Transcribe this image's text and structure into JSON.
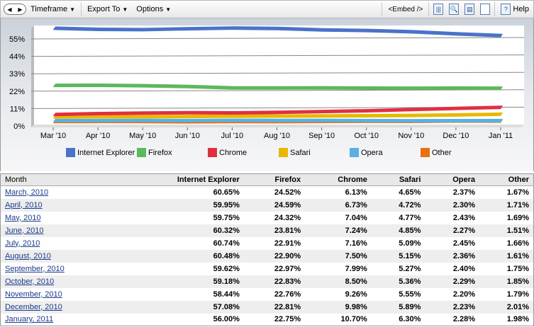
{
  "toolbar": {
    "timeframe": "Timeframe",
    "export": "Export To",
    "options": "Options",
    "embed": "<Embed />",
    "help": "Help",
    "icons": [
      "columns-icon",
      "print-preview-icon",
      "print-icon",
      "page-icon",
      "help-icon"
    ]
  },
  "colors": {
    "Internet Explorer": "#4a72c8",
    "Firefox": "#5cb85c",
    "Chrome": "#e03040",
    "Safari": "#e8b800",
    "Opera": "#5ab0e0",
    "Other": "#e87010"
  },
  "chart_data": {
    "type": "line",
    "categories": [
      "Mar '10",
      "Apr '10",
      "May '10",
      "Jun '10",
      "Jul '10",
      "Aug '10",
      "Sep '10",
      "Oct '10",
      "Nov '10",
      "Dec '10",
      "Jan '11"
    ],
    "y_ticks": [
      "0%",
      "11%",
      "22%",
      "33%",
      "44%",
      "55%"
    ],
    "ylim": [
      0,
      62.6
    ],
    "grid": true,
    "legend": "bottom",
    "series": [
      {
        "name": "Internet Explorer",
        "values": [
          60.65,
          59.95,
          59.75,
          60.32,
          60.74,
          60.48,
          59.62,
          59.18,
          58.44,
          57.08,
          56.0
        ]
      },
      {
        "name": "Firefox",
        "values": [
          24.52,
          24.59,
          24.32,
          23.81,
          22.91,
          22.9,
          22.97,
          22.83,
          22.76,
          22.81,
          22.75
        ]
      },
      {
        "name": "Chrome",
        "values": [
          6.13,
          6.73,
          7.04,
          7.24,
          7.16,
          7.5,
          7.99,
          8.5,
          9.26,
          9.98,
          10.7
        ]
      },
      {
        "name": "Safari",
        "values": [
          4.65,
          4.72,
          4.77,
          4.85,
          5.09,
          5.15,
          5.27,
          5.36,
          5.55,
          5.89,
          6.3
        ]
      },
      {
        "name": "Opera",
        "values": [
          2.37,
          2.3,
          2.43,
          2.27,
          2.45,
          2.36,
          2.4,
          2.29,
          2.2,
          2.23,
          2.28
        ]
      },
      {
        "name": "Other",
        "values": [
          1.67,
          1.71,
          1.69,
          1.51,
          1.66,
          1.61,
          1.75,
          1.85,
          1.79,
          2.01,
          1.98
        ]
      }
    ]
  },
  "table": {
    "headers": [
      "Month",
      "Internet Explorer",
      "Firefox",
      "Chrome",
      "Safari",
      "Opera",
      "Other"
    ],
    "rows": [
      [
        "March, 2010",
        "60.65%",
        "24.52%",
        "6.13%",
        "4.65%",
        "2.37%",
        "1.67%"
      ],
      [
        "April, 2010",
        "59.95%",
        "24.59%",
        "6.73%",
        "4.72%",
        "2.30%",
        "1.71%"
      ],
      [
        "May, 2010",
        "59.75%",
        "24.32%",
        "7.04%",
        "4.77%",
        "2.43%",
        "1.69%"
      ],
      [
        "June, 2010",
        "60.32%",
        "23.81%",
        "7.24%",
        "4.85%",
        "2.27%",
        "1.51%"
      ],
      [
        "July, 2010",
        "60.74%",
        "22.91%",
        "7.16%",
        "5.09%",
        "2.45%",
        "1.66%"
      ],
      [
        "August, 2010",
        "60.48%",
        "22.90%",
        "7.50%",
        "5.15%",
        "2.36%",
        "1.61%"
      ],
      [
        "September, 2010",
        "59.62%",
        "22.97%",
        "7.99%",
        "5.27%",
        "2.40%",
        "1.75%"
      ],
      [
        "October, 2010",
        "59.18%",
        "22.83%",
        "8.50%",
        "5.36%",
        "2.29%",
        "1.85%"
      ],
      [
        "November, 2010",
        "58.44%",
        "22.76%",
        "9.26%",
        "5.55%",
        "2.20%",
        "1.79%"
      ],
      [
        "December, 2010",
        "57.08%",
        "22.81%",
        "9.98%",
        "5.89%",
        "2.23%",
        "2.01%"
      ],
      [
        "January, 2011",
        "56.00%",
        "22.75%",
        "10.70%",
        "6.30%",
        "2.28%",
        "1.98%"
      ]
    ]
  }
}
